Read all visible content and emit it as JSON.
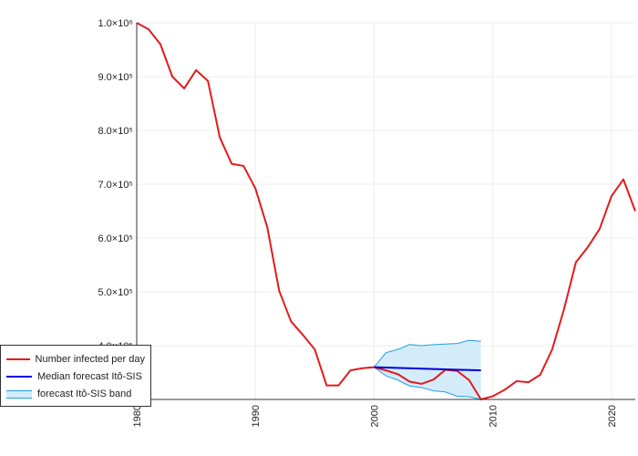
{
  "chart_data": {
    "type": "line",
    "x_axis": {
      "range": [
        1980,
        2022
      ],
      "ticks": [
        1980,
        1990,
        2000,
        2010,
        2020
      ],
      "tick_labels": [
        "1980",
        "1990",
        "2000",
        "2010",
        "2020"
      ]
    },
    "y_axis": {
      "range": [
        300000,
        1000000
      ],
      "ticks": [
        400000,
        500000,
        600000,
        700000,
        800000,
        900000,
        1000000
      ],
      "tick_labels": [
        "4.0×10⁵",
        "5.0×10⁵",
        "6.0×10⁵",
        "7.0×10⁵",
        "8.0×10⁵",
        "9.0×10⁵",
        "1.0×10⁶"
      ]
    },
    "grid": true,
    "legend_position": "bottom-left",
    "series": [
      {
        "name": "Number infected per day",
        "kind": "line",
        "color": "#e41a1c",
        "x": [
          1980,
          1981,
          1982,
          1983,
          1984,
          1985,
          1986,
          1987,
          1988,
          1989,
          1990,
          1991,
          1992,
          1993,
          1994,
          1995,
          1996,
          1997,
          1998,
          1999,
          2000,
          2001,
          2002,
          2003,
          2004,
          2005,
          2006,
          2007,
          2008,
          2009,
          2010,
          2011,
          2012,
          2013,
          2014,
          2015,
          2016,
          2017,
          2018,
          2019,
          2020,
          2021,
          2022
        ],
        "y": [
          1000000,
          988000,
          960000,
          900000,
          878000,
          912000,
          892000,
          787000,
          738000,
          734000,
          692000,
          620000,
          502000,
          445000,
          420000,
          393000,
          326000,
          326000,
          354000,
          358000,
          360000,
          354000,
          347000,
          333000,
          329000,
          337000,
          355000,
          353000,
          336000,
          300000,
          306000,
          318000,
          334000,
          332000,
          346000,
          393000,
          468000,
          555000,
          583000,
          617000,
          678000,
          709000,
          650000
        ]
      },
      {
        "name": "Median forecast Itô-SIS",
        "kind": "line",
        "color": "#0000dd",
        "x": [
          2000,
          2009
        ],
        "y": [
          360000,
          354000
        ]
      },
      {
        "name": "forecast Itô-SIS band",
        "kind": "band",
        "color": "#1fa0e0",
        "fill": "#d4ecfa",
        "x": [
          2000,
          2001,
          2002,
          2003,
          2004,
          2005,
          2006,
          2007,
          2008,
          2009
        ],
        "upper": [
          360000,
          387000,
          393000,
          402000,
          400000,
          402000,
          403000,
          404000,
          410000,
          408000
        ],
        "lower": [
          360000,
          344000,
          336000,
          325000,
          322000,
          316000,
          314000,
          306000,
          305000,
          300000
        ]
      }
    ]
  }
}
